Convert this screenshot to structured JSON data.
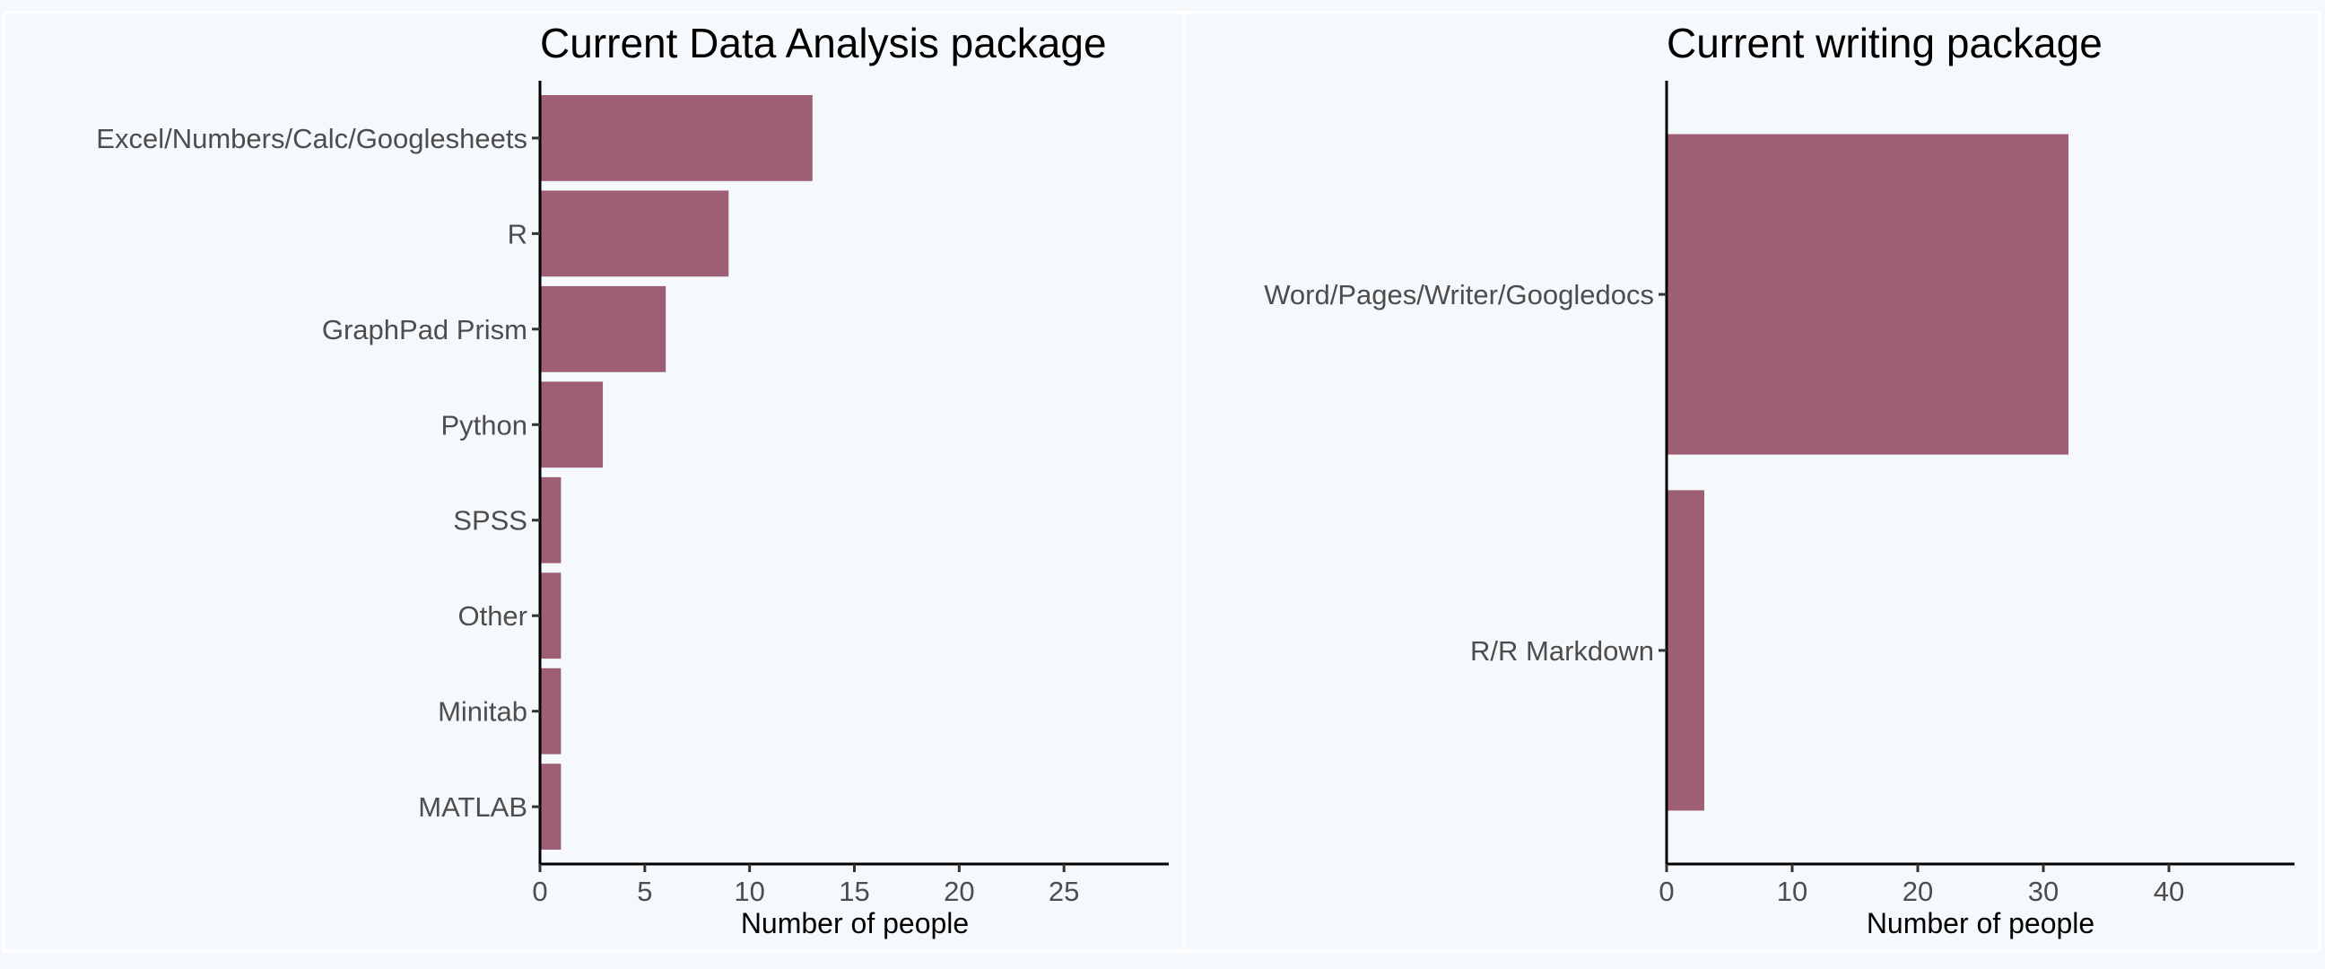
{
  "colors": {
    "bar": "#9e5f75",
    "background": "#f5f9fc"
  },
  "chart_data": [
    {
      "type": "bar",
      "orientation": "horizontal",
      "title": "Current Data Analysis package",
      "xlabel": "Number of people",
      "ylabel": "",
      "categories": [
        "Excel/Numbers/Calc/Googlesheets",
        "R",
        "GraphPad Prism",
        "Python",
        "SPSS",
        "Other",
        "Minitab",
        "MATLAB"
      ],
      "values": [
        13,
        9,
        6,
        3,
        1,
        1,
        1,
        1
      ],
      "xlim": [
        0,
        30
      ],
      "xticks": [
        0,
        5,
        10,
        15,
        20,
        25
      ],
      "grid": false,
      "legend": "none"
    },
    {
      "type": "bar",
      "orientation": "horizontal",
      "title": "Current writing package",
      "xlabel": "Number of people",
      "ylabel": "",
      "categories": [
        "Word/Pages/Writer/Googledocs",
        "R/R Markdown"
      ],
      "values": [
        32,
        3
      ],
      "xlim": [
        0,
        50
      ],
      "xticks": [
        0,
        10,
        20,
        30,
        40
      ],
      "grid": false,
      "legend": "none"
    }
  ]
}
